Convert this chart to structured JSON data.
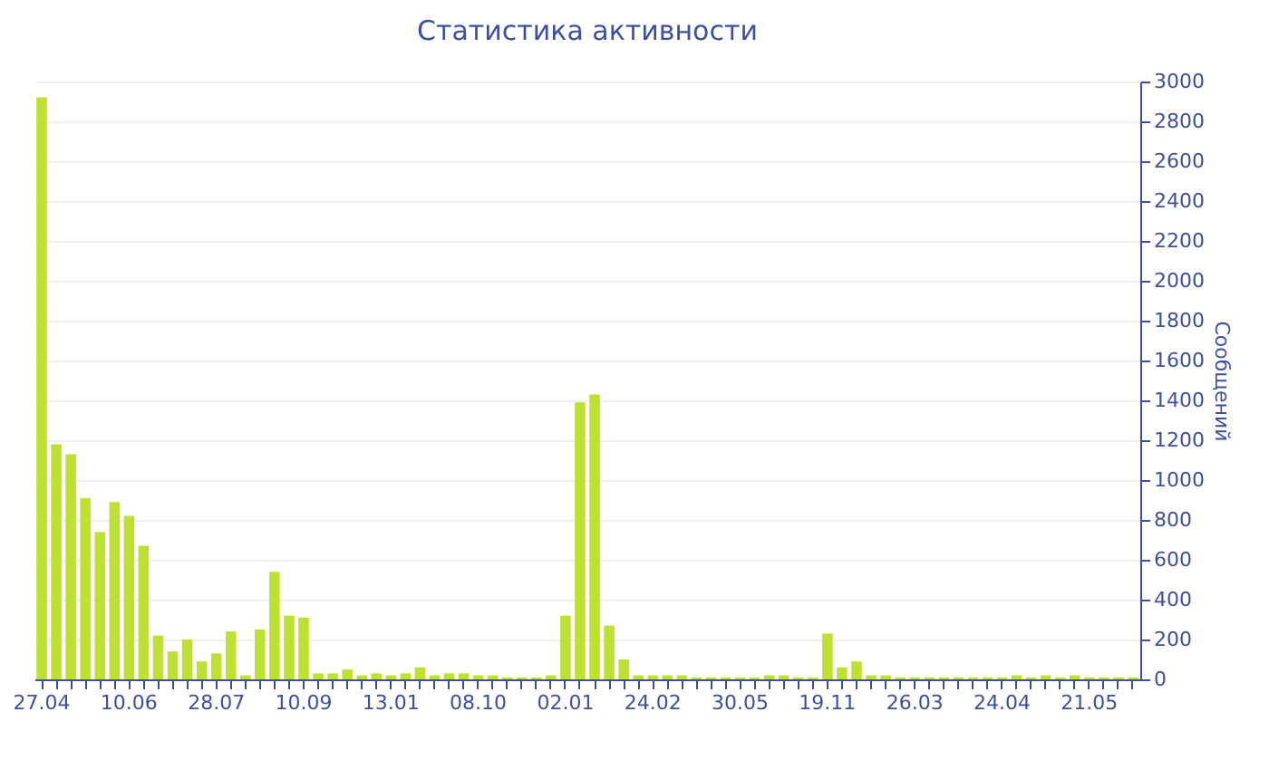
{
  "chart_data": {
    "type": "bar",
    "title": "Статистика активности",
    "ylabel": "Сообщений",
    "categories": [
      "27.04",
      null,
      null,
      null,
      null,
      null,
      "10.06",
      null,
      null,
      null,
      null,
      null,
      "28.07",
      null,
      null,
      null,
      null,
      null,
      "10.09",
      null,
      null,
      null,
      null,
      null,
      "13.01",
      null,
      null,
      null,
      null,
      null,
      "08.10",
      null,
      null,
      null,
      null,
      null,
      "02.01",
      null,
      null,
      null,
      null,
      null,
      "24.02",
      null,
      null,
      null,
      null,
      null,
      "30.05",
      null,
      null,
      null,
      null,
      null,
      "19.11",
      null,
      null,
      null,
      null,
      null,
      "26.03",
      null,
      null,
      null,
      null,
      null,
      "24.04",
      null,
      null,
      null,
      null,
      null,
      "21.05",
      null,
      null,
      null
    ],
    "values": [
      2920,
      1180,
      1130,
      910,
      740,
      890,
      820,
      670,
      220,
      140,
      200,
      90,
      130,
      240,
      20,
      250,
      540,
      320,
      310,
      30,
      30,
      50,
      20,
      30,
      20,
      30,
      60,
      20,
      30,
      30,
      20,
      20,
      10,
      10,
      10,
      20,
      320,
      1390,
      1430,
      270,
      100,
      20,
      20,
      20,
      20,
      10,
      10,
      10,
      10,
      10,
      20,
      20,
      10,
      10,
      230,
      60,
      90,
      20,
      20,
      10,
      10,
      10,
      10,
      10,
      10,
      10,
      10,
      20,
      10,
      20,
      10,
      20,
      10,
      10,
      10,
      10
    ],
    "color": "#bde032",
    "ylim": [
      0,
      3000
    ],
    "yticks": [
      0,
      200,
      400,
      600,
      800,
      1000,
      1200,
      1400,
      1600,
      1800,
      2000,
      2200,
      2400,
      2600,
      2800,
      3000
    ],
    "grid": "y"
  }
}
